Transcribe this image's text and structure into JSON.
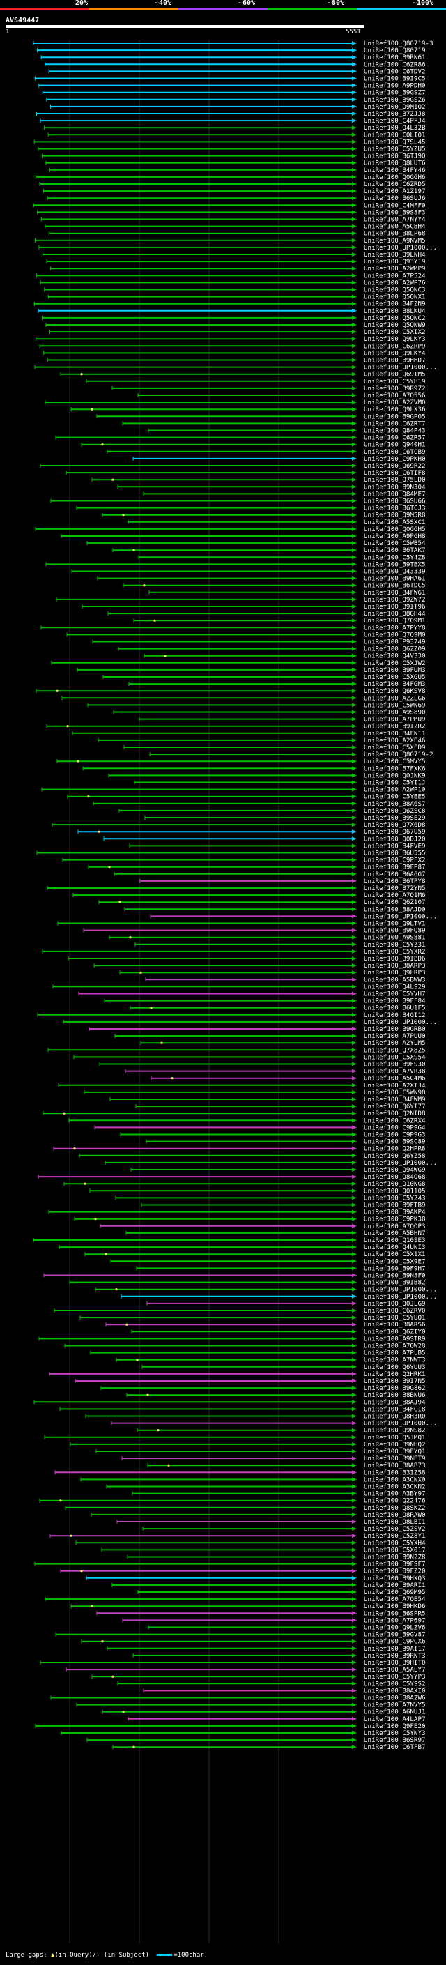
{
  "scale": {
    "ticks": [
      "20%",
      "~40%",
      "~60%",
      "~80%",
      "~100%"
    ],
    "colors": [
      "#ff2020",
      "#ff8c00",
      "#b040ff",
      "#00c000",
      "#00d0ff"
    ]
  },
  "query": {
    "name": "AVS49447",
    "start": "1",
    "end": "5551"
  },
  "colors": {
    "bar_full": "#00d0ff",
    "bar_green": "#00c000",
    "bar_purple": "#c040c0",
    "gap": "#ffff66"
  },
  "legend": {
    "prefix": "Large gaps:",
    "gap_mark": "▲",
    "gap_text": "(in Query)/- (in Subject)",
    "swatch_text": "=100char."
  },
  "hits": [
    {
      "label": "UniRef100_Q80719-3"
    },
    {
      "label": "UniRef100_Q80719"
    },
    {
      "label": "UniRef100_B9RN61"
    },
    {
      "label": "UniRef100_C6ZR86"
    },
    {
      "label": "UniRef100_C6TDV2"
    },
    {
      "label": "UniRef100_B9I9C5"
    },
    {
      "label": "UniRef100_A9PDH0"
    },
    {
      "label": "UniRef100_B9GSZ7"
    },
    {
      "label": "UniRef100_B9GSZ6"
    },
    {
      "label": "UniRef100_Q9M1Q2"
    },
    {
      "label": "UniRef100_B7ZJJ8"
    },
    {
      "label": "UniRef100_C4PFJ4"
    },
    {
      "label": "UniRef100_Q4L32B"
    },
    {
      "label": "UniRef100_C0LI01"
    },
    {
      "label": "UniRef100_Q7SL45"
    },
    {
      "label": "UniRef100_C5YZU5"
    },
    {
      "label": "UniRef100_B6TJ9Q"
    },
    {
      "label": "UniRef100_Q8LUT6"
    },
    {
      "label": "UniRef100_B4FY46"
    },
    {
      "label": "UniRef100_Q0GGH6"
    },
    {
      "label": "UniRef100_C6ZRD5"
    },
    {
      "label": "UniRef100_A1Z197"
    },
    {
      "label": "UniRef100_B6SUJ6"
    },
    {
      "label": "UniRef100_C4MFF0"
    },
    {
      "label": "UniRef100_B9S8F3"
    },
    {
      "label": "UniRef100_A7NYY4"
    },
    {
      "label": "UniRef100_A5CBH4"
    },
    {
      "label": "UniRef100_B8LP68"
    },
    {
      "label": "UniRef100_A9NVM5"
    },
    {
      "label": "UniRef100_UP1000..."
    },
    {
      "label": "UniRef100_Q9LNH4"
    },
    {
      "label": "UniRef100_Q93Y19"
    },
    {
      "label": "UniRef100_A2WMP9"
    },
    {
      "label": "UniRef100_A7P524"
    },
    {
      "label": "UniRef100_A2WP76"
    },
    {
      "label": "UniRef100_Q5QNC3"
    },
    {
      "label": "UniRef100_Q5QNX1"
    },
    {
      "label": "UniRef100_B4FZN9"
    },
    {
      "label": "UniRef100_B8LKU4"
    },
    {
      "label": "UniRef100_Q5QNC2"
    },
    {
      "label": "UniRef100_Q5QNW9"
    },
    {
      "label": "UniRef100_C5XIX2"
    },
    {
      "label": "UniRef100_Q9LKY3"
    },
    {
      "label": "UniRef100_C6ZRP9"
    },
    {
      "label": "UniRef100_Q9LKY4"
    },
    {
      "label": "UniRef100_B9HHD7"
    },
    {
      "label": "UniRef100_UP1000..."
    },
    {
      "label": "UniRef100_Q69IM5"
    },
    {
      "label": "UniRef100_C5YH19"
    },
    {
      "label": "UniRef100_B9R9Z2"
    },
    {
      "label": "UniRef100_A7Q556"
    },
    {
      "label": "UniRef100_A2ZVM0"
    },
    {
      "label": "UniRef100_Q9LX36"
    },
    {
      "label": "UniRef100_B9GP05"
    },
    {
      "label": "UniRef100_C6ZRT7"
    },
    {
      "label": "UniRef100_Q84P43"
    },
    {
      "label": "UniRef100_C6ZR57"
    },
    {
      "label": "UniRef100_Q940H1"
    },
    {
      "label": "UniRef100_C6TCB9"
    },
    {
      "label": "UniRef100_C9PKH0"
    },
    {
      "label": "UniRef100_Q69R22"
    },
    {
      "label": "UniRef100_C6TIF8"
    },
    {
      "label": "UniRef100_Q75LD0"
    },
    {
      "label": "UniRef100_B9N304"
    },
    {
      "label": "UniRef100_Q84ME7"
    },
    {
      "label": "UniRef100_B6SU66"
    },
    {
      "label": "UniRef100_B6TCJ3"
    },
    {
      "label": "UniRef100_Q9M5R8"
    },
    {
      "label": "UniRef100_A5SXC1"
    },
    {
      "label": "UniRef100_Q0GGH5"
    },
    {
      "label": "UniRef100_A9PGH8"
    },
    {
      "label": "UniRef100_C5WB54"
    },
    {
      "label": "UniRef100_B6TAK7"
    },
    {
      "label": "UniRef100_C5Y4Z8"
    },
    {
      "label": "UniRef100_B9TBX5"
    },
    {
      "label": "UniRef100_Q43339"
    },
    {
      "label": "UniRef100_B9HA61"
    },
    {
      "label": "UniRef100_B6TDC5"
    },
    {
      "label": "UniRef100_B4FW61"
    },
    {
      "label": "UniRef100_Q9ZW72"
    },
    {
      "label": "UniRef100_B9IT96"
    },
    {
      "label": "UniRef100_Q8GH44"
    },
    {
      "label": "UniRef100_Q7Q9M1"
    },
    {
      "label": "UniRef100_A7PYY8"
    },
    {
      "label": "UniRef100_Q7Q9M0"
    },
    {
      "label": "UniRef100_P93749"
    },
    {
      "label": "UniRef100_Q6ZZ09"
    },
    {
      "label": "UniRef100_Q4V330"
    },
    {
      "label": "UniRef100_C5XJW2"
    },
    {
      "label": "UniRef100_B9FUM3"
    },
    {
      "label": "UniRef100_C5XGU5"
    },
    {
      "label": "UniRef100_B4FGM3"
    },
    {
      "label": "UniRef100_Q6KSV8"
    },
    {
      "label": "UniRef100_A2ZLG6"
    },
    {
      "label": "UniRef100_C5WN69"
    },
    {
      "label": "UniRef100_A9S890"
    },
    {
      "label": "UniRef100_A7PMU9"
    },
    {
      "label": "UniRef100_B9I2R2"
    },
    {
      "label": "UniRef100_B4FN11"
    },
    {
      "label": "UniRef100_A2XE46"
    },
    {
      "label": "UniRef100_C5XFD9"
    },
    {
      "label": "UniRef100_Q80719-2"
    },
    {
      "label": "UniRef100_C5MVY5"
    },
    {
      "label": "UniRef100_B7FXK6"
    },
    {
      "label": "UniRef100_Q0JNK9"
    },
    {
      "label": "UniRef100_C5YI1J"
    },
    {
      "label": "UniRef100_A2WP10"
    },
    {
      "label": "UniRef100_C5YBE5"
    },
    {
      "label": "UniRef100_B8A6S7"
    },
    {
      "label": "UniRef100_Q6ZSC8"
    },
    {
      "label": "UniRef100_B9SE29"
    },
    {
      "label": "UniRef100_Q7X6D8"
    },
    {
      "label": "UniRef100_Q67U59"
    },
    {
      "label": "UniRef100_Q0DJ20"
    },
    {
      "label": "UniRef100_B4FVE9"
    },
    {
      "label": "UniRef100_B6U555"
    },
    {
      "label": "UniRef100_C9PFX2"
    },
    {
      "label": "UniRef100_B9FP87"
    },
    {
      "label": "UniRef100_B6A6G7"
    },
    {
      "label": "UniRef100_B6TPY8"
    },
    {
      "label": "UniRef100_B7ZYN5"
    },
    {
      "label": "UniRef100_A7Q1M6"
    },
    {
      "label": "UniRef100_Q6Z107"
    },
    {
      "label": "UniRef100_B8AJD0"
    },
    {
      "label": "UniRef100_UP1000..."
    },
    {
      "label": "UniRef100_Q9LTV1"
    },
    {
      "label": "UniRef100_B9FQ89"
    },
    {
      "label": "UniRef100_A9S881"
    },
    {
      "label": "UniRef100_C5YZ31"
    },
    {
      "label": "UniRef100_C5YXR2"
    },
    {
      "label": "UniRef100_B9IBD6"
    },
    {
      "label": "UniRef100_B8ARP3"
    },
    {
      "label": "UniRef100_Q9LRP3"
    },
    {
      "label": "UniRef100_A5BWW3"
    },
    {
      "label": "UniRef100_Q4LS29"
    },
    {
      "label": "UniRef100_C5YVH7"
    },
    {
      "label": "UniRef100_B9FF84"
    },
    {
      "label": "UniRef100_B6U1F5"
    },
    {
      "label": "UniRef100_B4GI12"
    },
    {
      "label": "UniRef100_UP1000..."
    },
    {
      "label": "UniRef100_B9GRB0"
    },
    {
      "label": "UniRef100_A7PUU0"
    },
    {
      "label": "UniRef100_A2YLM5"
    },
    {
      "label": "UniRef100_Q7X8Z5"
    },
    {
      "label": "UniRef100_C5XS54"
    },
    {
      "label": "UniRef100_B9FS30"
    },
    {
      "label": "UniRef100_A7VR38"
    },
    {
      "label": "UniRef100_A5C4M6"
    },
    {
      "label": "UniRef100_A2XTJ4"
    },
    {
      "label": "UniRef100_C5WN98"
    },
    {
      "label": "UniRef100_B4FWM9"
    },
    {
      "label": "UniRef100_Q6YI77"
    },
    {
      "label": "UniRef100_Q2NID8"
    },
    {
      "label": "UniRef100_C6ZRX4"
    },
    {
      "label": "UniRef100_C9P9G4"
    },
    {
      "label": "UniRef100_C9P9G3"
    },
    {
      "label": "UniRef100_B9SC89"
    },
    {
      "label": "UniRef100_Q2HPR8"
    },
    {
      "label": "UniRef100_Q6YZ58"
    },
    {
      "label": "UniRef100_UP1000..."
    },
    {
      "label": "UniRef100_Q94WG9"
    },
    {
      "label": "UniRef100_Q84Q68"
    },
    {
      "label": "UniRef100_Q10NG8"
    },
    {
      "label": "UniRef100_Q01105"
    },
    {
      "label": "UniRef100_C5YZ43"
    },
    {
      "label": "UniRef100_B9FTB9"
    },
    {
      "label": "UniRef100_B9AKP4"
    },
    {
      "label": "UniRef100_C9PK38"
    },
    {
      "label": "UniRef100_A7QOP3"
    },
    {
      "label": "UniRef100_A5BHN7"
    },
    {
      "label": "UniRef100_Q10SE3"
    },
    {
      "label": "UniRef100_Q4UNI3"
    },
    {
      "label": "UniRef100_C5X1X1"
    },
    {
      "label": "UniRef100_C5X9E7"
    },
    {
      "label": "UniRef100_B9F9H7"
    },
    {
      "label": "UniRef100_B9N8F0"
    },
    {
      "label": "UniRef100_B9IB82"
    },
    {
      "label": "UniRef100_UP1000..."
    },
    {
      "label": "UniRef100_UP1000..."
    },
    {
      "label": "UniRef100_Q0JLG9"
    },
    {
      "label": "UniRef100_C6ZRV0"
    },
    {
      "label": "UniRef100_C5YUQ1"
    },
    {
      "label": "UniRef100_B8ARS6"
    },
    {
      "label": "UniRef100_Q6ZIY0"
    },
    {
      "label": "UniRef100_A9STR9"
    },
    {
      "label": "UniRef100_A7QW28"
    },
    {
      "label": "UniRef100_A7PLB5"
    },
    {
      "label": "UniRef100_A7NWT3"
    },
    {
      "label": "UniRef100_Q6YUU3"
    },
    {
      "label": "UniRef100_Q2HRK1"
    },
    {
      "label": "UniRef100_B9I7N5"
    },
    {
      "label": "UniRef100_B9G862"
    },
    {
      "label": "UniRef100_B8BNU6"
    },
    {
      "label": "UniRef100_B8AJ94"
    },
    {
      "label": "UniRef100_B4FGI8"
    },
    {
      "label": "UniRef100_Q8H3R0"
    },
    {
      "label": "UniRef100_UP1000..."
    },
    {
      "label": "UniRef100_Q9NS82"
    },
    {
      "label": "UniRef100_Q5JMQ1"
    },
    {
      "label": "UniRef100_B9NHQ2"
    },
    {
      "label": "UniRef100_B9EYQ1"
    },
    {
      "label": "UniRef100_B9NET9"
    },
    {
      "label": "UniRef100_B8AB73"
    },
    {
      "label": "UniRef100_B3IZ58"
    },
    {
      "label": "UniRef100_A3CNX0"
    },
    {
      "label": "UniRef100_A3CKN2"
    },
    {
      "label": "UniRef100_A3BY97"
    },
    {
      "label": "UniRef100_Q22476"
    },
    {
      "label": "UniRef100_Q8SKZ2"
    },
    {
      "label": "UniRef100_Q8RAW0"
    },
    {
      "label": "UniRef100_Q8LBI1"
    },
    {
      "label": "UniRef100_C5ZSV2"
    },
    {
      "label": "UniRef100_C5Z8Y1"
    },
    {
      "label": "UniRef100_C5YXH4"
    },
    {
      "label": "UniRef100_C5X017"
    },
    {
      "label": "UniRef100_B9N2Z8"
    },
    {
      "label": "UniRef100_B9FSF7"
    },
    {
      "label": "UniRef100_B9FZ20"
    },
    {
      "label": "UniRef100_B9HXQ3"
    },
    {
      "label": "UniRef100_B9ARI1"
    },
    {
      "label": "UniRef100_Q69M95"
    },
    {
      "label": "UniRef100_A7QE54"
    },
    {
      "label": "UniRef100_B9HKD6"
    },
    {
      "label": "UniRef100_B6SPR5"
    },
    {
      "label": "UniRef100_A7P697"
    },
    {
      "label": "UniRef100_Q9LZV6"
    },
    {
      "label": "UniRef100_B9GV87"
    },
    {
      "label": "UniRef100_C9PCX6"
    },
    {
      "label": "UniRef100_B9AI17"
    },
    {
      "label": "UniRef100_B9RNT3"
    },
    {
      "label": "UniRef100_B9HIT0"
    },
    {
      "label": "UniRef100_A5ALY7"
    },
    {
      "label": "UniRef100_C5YYP3"
    },
    {
      "label": "UniRef100_C5YSS2"
    },
    {
      "label": "UniRef100_B8AXI0"
    },
    {
      "label": "UniRef100_B8A2W6"
    },
    {
      "label": "UniRef100_A7NVY5"
    },
    {
      "label": "UniRef100_A6NUJ1"
    },
    {
      "label": "UniRef100_A4LAP7"
    },
    {
      "label": "UniRef100_Q9FE20"
    },
    {
      "label": "UniRef100_C5YNY3"
    },
    {
      "label": "UniRef100_B6SR97"
    },
    {
      "label": "UniRef100_C6TFB7"
    }
  ]
}
